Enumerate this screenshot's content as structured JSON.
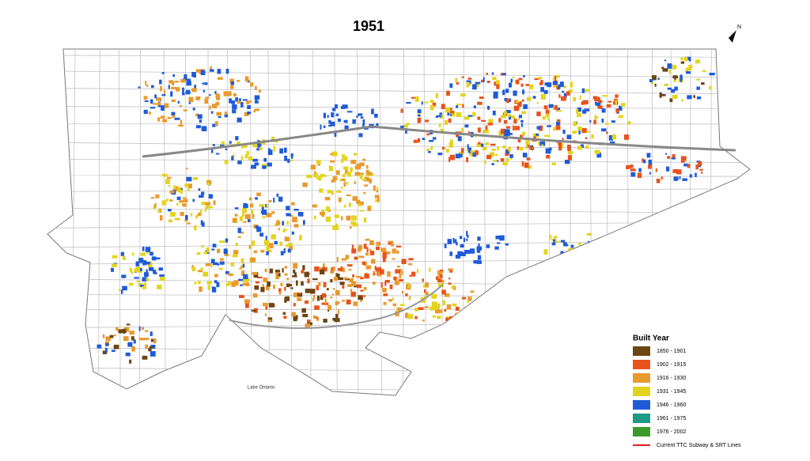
{
  "title": "1951",
  "legend": {
    "title": "Built Year",
    "items": [
      {
        "label": "1850 - 1901",
        "color": "#6b4512"
      },
      {
        "label": "1902 - 1915",
        "color": "#e8531c"
      },
      {
        "label": "1916 - 1930",
        "color": "#e99a2c"
      },
      {
        "label": "1931 - 1945",
        "color": "#e3d41f"
      },
      {
        "label": "1946 - 1960",
        "color": "#1f5bd8"
      },
      {
        "label": "1961 - 1975",
        "color": "#1d9a86"
      },
      {
        "label": "1976 - 2002",
        "color": "#3c9a2a"
      }
    ],
    "line_item": {
      "label": "Current TTC Subway & SRT Lines",
      "color": "#e0201b"
    }
  },
  "map": {
    "water_label": "Lake Ontario",
    "north_label": "N"
  }
}
